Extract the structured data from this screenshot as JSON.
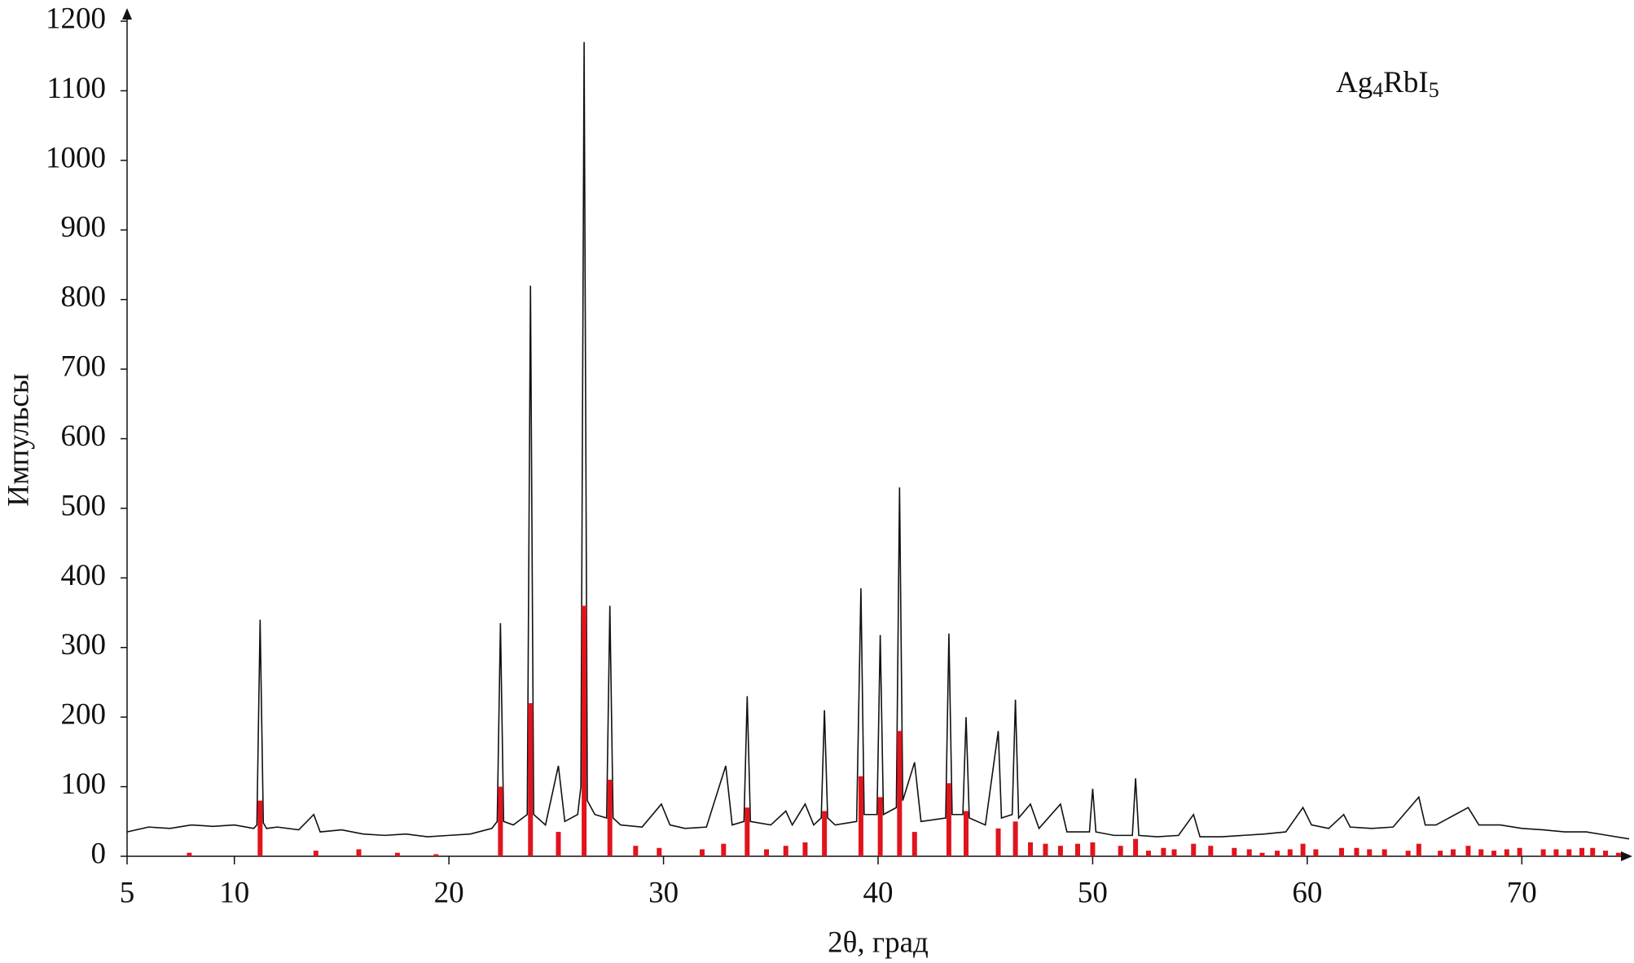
{
  "chart_data": {
    "type": "line",
    "annotation": [
      "Ag",
      "4",
      "RbI",
      "5"
    ],
    "x_label": "2θ, град",
    "y_label": "Импульсы",
    "xlim": [
      5,
      75
    ],
    "ylim": [
      0,
      1200
    ],
    "xticks": [
      5,
      10,
      20,
      30,
      40,
      50,
      60,
      70
    ],
    "yticks": [
      0,
      100,
      200,
      300,
      400,
      500,
      600,
      700,
      800,
      900,
      1000,
      1100,
      1200
    ],
    "series": [
      {
        "type": "line",
        "color": "#111111",
        "x": [
          5,
          6,
          7,
          8,
          9,
          10,
          10.9,
          11.05,
          11.2,
          11.35,
          11.5,
          12,
          13,
          13.7,
          14,
          15,
          16,
          17,
          18,
          19,
          20,
          21,
          22,
          22.25,
          22.4,
          22.55,
          23,
          23.65,
          23.8,
          23.95,
          24.5,
          25.1,
          25.4,
          26.0,
          26.15,
          26.3,
          26.45,
          26.8,
          27.35,
          27.5,
          27.65,
          28,
          29,
          29.9,
          30.3,
          31,
          32,
          32.9,
          33.2,
          33.75,
          33.9,
          34.05,
          35,
          35.7,
          36,
          36.6,
          37,
          37.35,
          37.5,
          37.65,
          38,
          39,
          39.2,
          39.35,
          39.95,
          40.1,
          40.25,
          40.85,
          41,
          41.15,
          41.7,
          42,
          43.15,
          43.3,
          43.45,
          43.95,
          44.1,
          44.25,
          45,
          45.6,
          45.75,
          46.25,
          46.4,
          46.55,
          47.1,
          47.5,
          48.5,
          48.8,
          49.85,
          50,
          50.15,
          51,
          51.85,
          52,
          52.15,
          53,
          54,
          54.7,
          55,
          56,
          57,
          58,
          59,
          59.8,
          60.2,
          61,
          61.7,
          62,
          63,
          64,
          65.2,
          65.5,
          66,
          67.5,
          68,
          69,
          70,
          71,
          72,
          73,
          74,
          75
        ],
        "values": [
          35,
          42,
          40,
          45,
          43,
          45,
          40,
          45,
          340,
          48,
          40,
          42,
          38,
          60,
          35,
          38,
          32,
          30,
          32,
          28,
          30,
          32,
          40,
          50,
          335,
          50,
          45,
          60,
          820,
          60,
          45,
          130,
          50,
          60,
          100,
          1170,
          80,
          60,
          55,
          360,
          55,
          45,
          42,
          75,
          45,
          40,
          42,
          130,
          45,
          50,
          230,
          50,
          45,
          65,
          45,
          75,
          45,
          55,
          210,
          55,
          45,
          50,
          385,
          60,
          60,
          318,
          60,
          70,
          530,
          80,
          135,
          50,
          55,
          320,
          60,
          60,
          200,
          55,
          45,
          180,
          55,
          60,
          225,
          55,
          75,
          40,
          75,
          35,
          35,
          97,
          35,
          30,
          30,
          112,
          30,
          28,
          30,
          60,
          28,
          28,
          30,
          32,
          35,
          70,
          45,
          40,
          60,
          42,
          40,
          42,
          85,
          45,
          45,
          70,
          45,
          45,
          40,
          38,
          35,
          35,
          30,
          25
        ]
      },
      {
        "type": "stick",
        "color": "#e0141e",
        "x": [
          7.9,
          11.2,
          13.8,
          15.8,
          17.6,
          19.4,
          22.4,
          23.8,
          25.1,
          26.3,
          27.5,
          28.7,
          29.8,
          31.8,
          32.8,
          33.9,
          34.8,
          35.7,
          36.6,
          37.5,
          39.2,
          40.1,
          41,
          41.7,
          43.3,
          44.1,
          45.6,
          46.4,
          47.1,
          47.8,
          48.5,
          49.3,
          50,
          51.3,
          52,
          52.6,
          53.3,
          53.8,
          54.7,
          55.5,
          56.6,
          57.3,
          57.9,
          58.6,
          59.2,
          59.8,
          60.4,
          61.6,
          62.3,
          62.9,
          63.6,
          64.7,
          65.2,
          66.2,
          66.8,
          67.5,
          68.1,
          68.7,
          69.3,
          69.9,
          71,
          71.6,
          72.2,
          72.8,
          73.3,
          73.9,
          74.5
        ],
        "values": [
          5,
          80,
          8,
          10,
          5,
          3,
          100,
          220,
          35,
          360,
          110,
          15,
          12,
          10,
          18,
          70,
          10,
          15,
          20,
          65,
          115,
          85,
          180,
          35,
          105,
          65,
          40,
          50,
          20,
          18,
          15,
          18,
          20,
          15,
          25,
          8,
          12,
          10,
          18,
          15,
          12,
          10,
          5,
          8,
          10,
          18,
          10,
          12,
          12,
          10,
          10,
          8,
          18,
          8,
          10,
          15,
          10,
          8,
          10,
          12,
          10,
          10,
          10,
          12,
          12,
          8,
          5
        ]
      }
    ]
  }
}
